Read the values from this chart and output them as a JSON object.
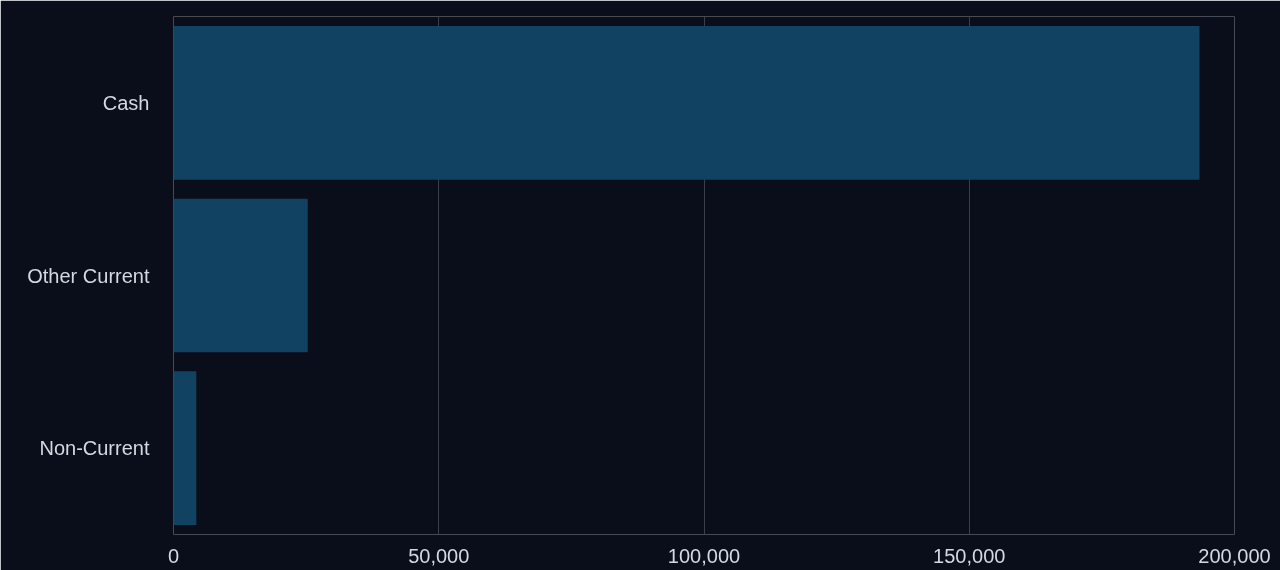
{
  "chart_data": {
    "type": "bar",
    "orientation": "horizontal",
    "categories": [
      "Cash",
      "Other Current",
      "Non-Current"
    ],
    "series": [
      {
        "color": "#124261",
        "values": [
          193400,
          25300,
          4300
        ]
      }
    ],
    "xlim": [
      0,
      200000
    ],
    "xticks": [
      {
        "value": 0,
        "label": "0"
      },
      {
        "value": 50000,
        "label": "50,000"
      },
      {
        "value": 100000,
        "label": "100,000"
      },
      {
        "value": 150000,
        "label": "150,000"
      },
      {
        "value": 200000,
        "label": "200,000"
      }
    ],
    "grid": "x"
  }
}
